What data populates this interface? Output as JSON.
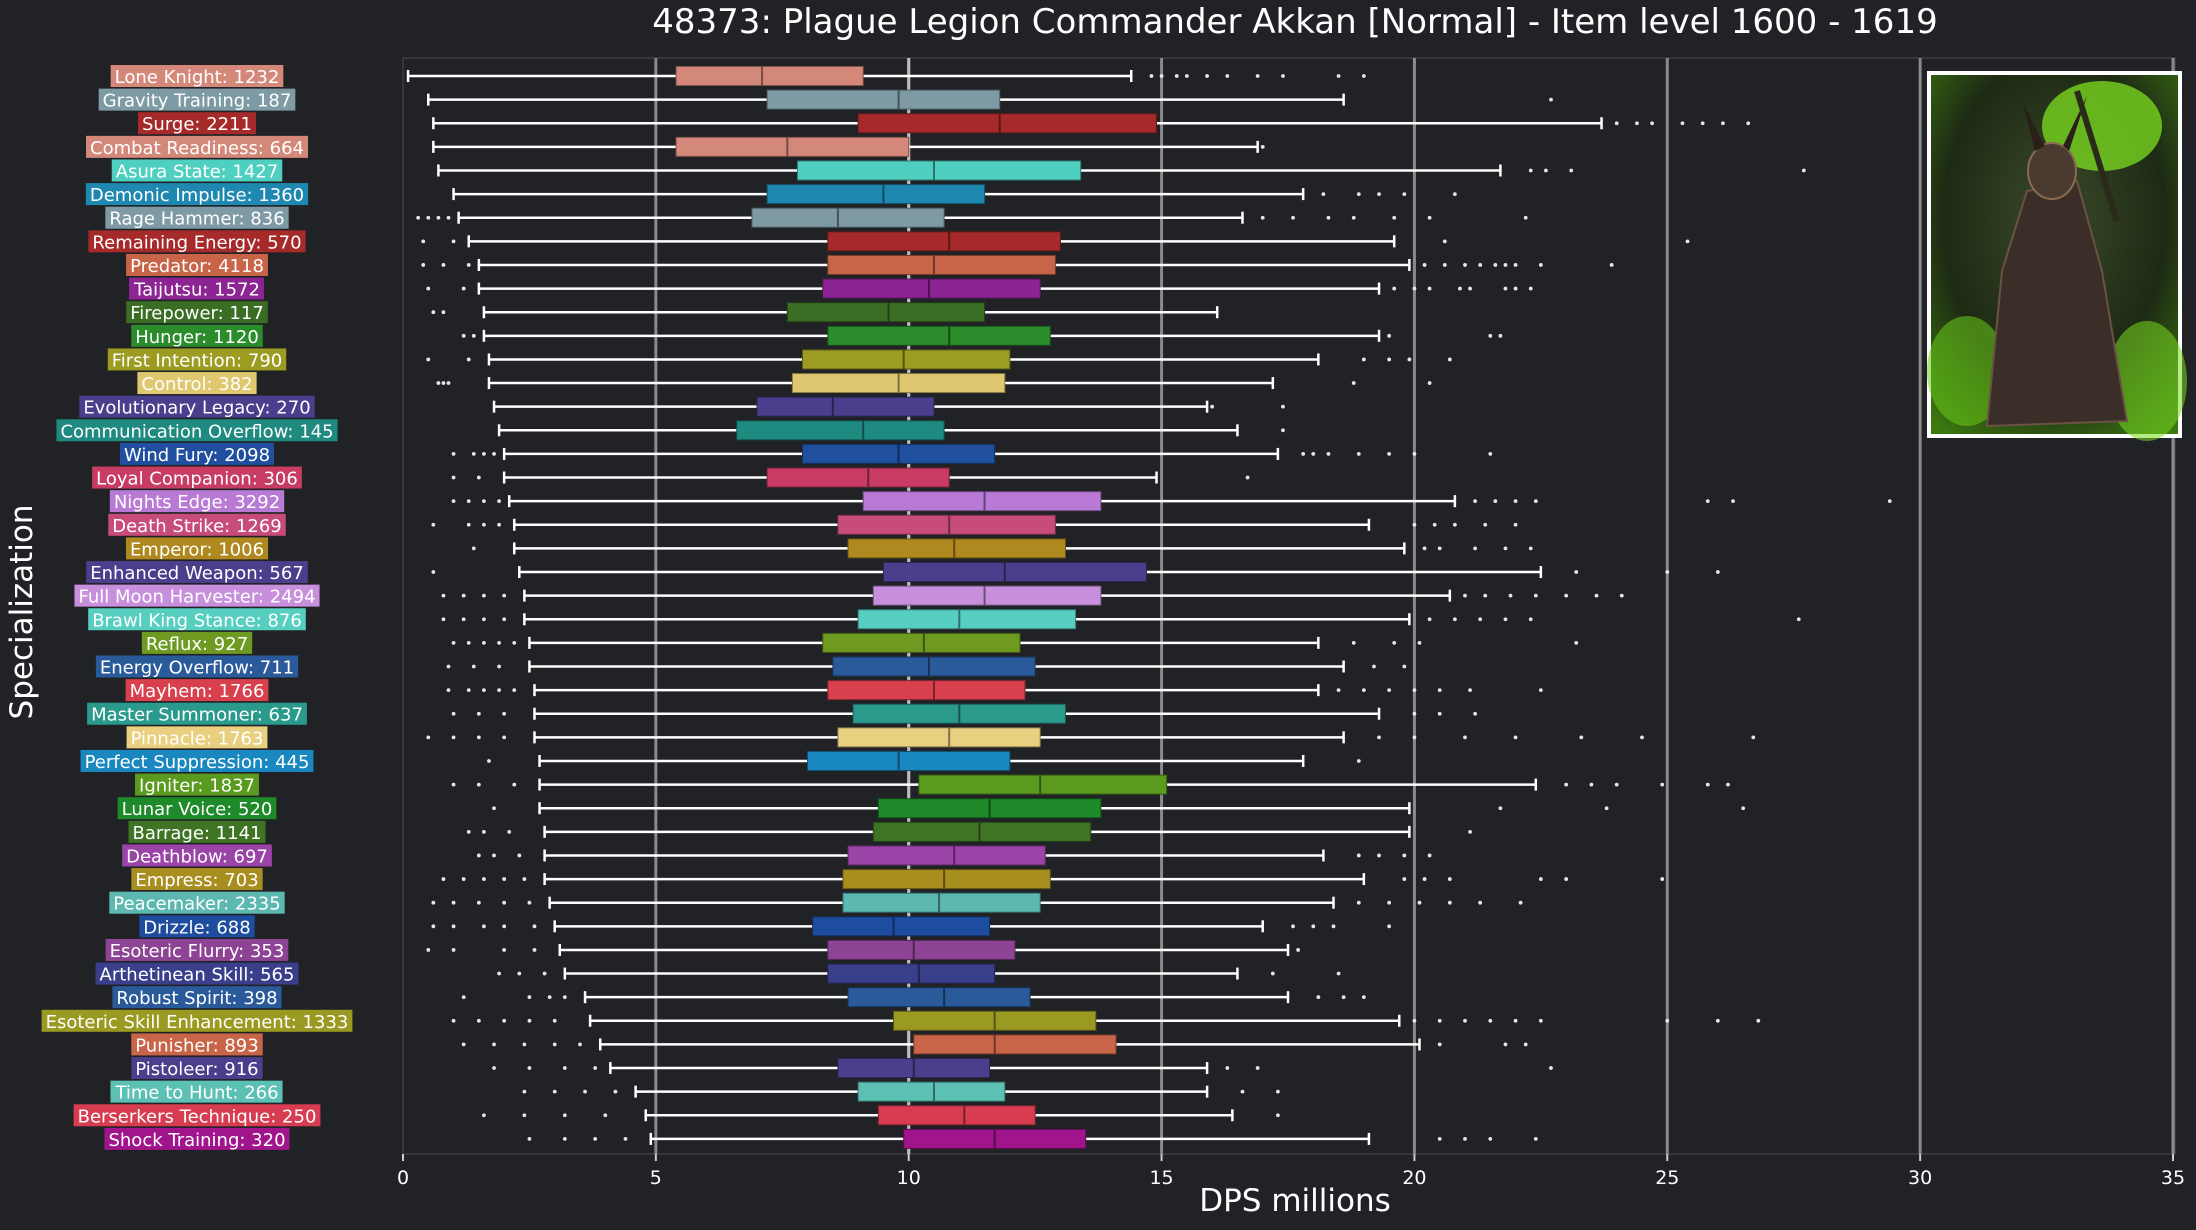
{
  "chart_data": {
    "type": "box",
    "title": "48373: Plague Legion Commander Akkan [Normal] - Item level 1600 - 1619",
    "xlabel": "DPS millions",
    "ylabel": "Specialization",
    "xlim": [
      0,
      35
    ],
    "xticks": [
      0,
      5,
      10,
      15,
      20,
      25,
      30,
      35
    ],
    "grid": "vertical-major",
    "median_reference_line": 10.0,
    "portrait": "boss-portrait (green-lit armored commander)",
    "colors": {
      "background": "#202226",
      "text": "#ffffff",
      "gridline": "#8a8a8a",
      "whisker": "#ffffff"
    },
    "series": [
      {
        "name": "Lone Knight: 1232",
        "color": "#d4887a",
        "whisker_low": 0.1,
        "q1": 5.4,
        "median": 7.1,
        "q3": 9.1,
        "whisker_high": 14.4,
        "outliers": [
          14.8,
          15.0,
          15.3,
          15.5,
          15.9,
          16.3,
          16.9,
          17.4,
          18.5,
          19.0
        ]
      },
      {
        "name": "Gravity Training: 187",
        "color": "#7e9aa4",
        "whisker_low": 0.5,
        "q1": 7.2,
        "median": 9.8,
        "q3": 11.8,
        "whisker_high": 18.6,
        "outliers": [
          22.7
        ]
      },
      {
        "name": "Surge: 2211",
        "color": "#a62a2a",
        "whisker_low": 0.6,
        "q1": 9.0,
        "median": 11.8,
        "q3": 14.9,
        "whisker_high": 23.7,
        "outliers": [
          24.0,
          24.4,
          24.7,
          25.3,
          25.7,
          26.1,
          26.6
        ]
      },
      {
        "name": "Combat Readiness: 664",
        "color": "#d4887a",
        "whisker_low": 0.6,
        "q1": 5.4,
        "median": 7.6,
        "q3": 10.0,
        "whisker_high": 16.9,
        "outliers": [
          17.0
        ]
      },
      {
        "name": "Asura State: 1427",
        "color": "#4fcfbf",
        "whisker_low": 0.7,
        "q1": 7.8,
        "median": 10.5,
        "q3": 13.4,
        "whisker_high": 21.7,
        "outliers": [
          22.3,
          22.6,
          23.1,
          27.7
        ]
      },
      {
        "name": "Demonic Impulse: 1360",
        "color": "#1e88b0",
        "whisker_low": 1.0,
        "q1": 7.2,
        "median": 9.5,
        "q3": 11.5,
        "whisker_high": 17.8,
        "outliers": [
          18.2,
          18.9,
          19.3,
          19.8,
          20.8
        ]
      },
      {
        "name": "Rage Hammer: 836",
        "color": "#7e9aa4",
        "whisker_low": 1.1,
        "q1": 6.9,
        "median": 8.6,
        "q3": 10.7,
        "whisker_high": 16.6,
        "outliers": [
          0.3,
          0.5,
          0.7,
          0.9,
          17.0,
          17.6,
          18.3,
          18.8,
          19.6,
          20.3,
          22.2
        ]
      },
      {
        "name": "Remaining Energy: 570",
        "color": "#a62a2a",
        "whisker_low": 1.3,
        "q1": 8.4,
        "median": 10.8,
        "q3": 13.0,
        "whisker_high": 19.6,
        "outliers": [
          0.4,
          1.0,
          20.6,
          25.4
        ]
      },
      {
        "name": "Predator: 4118",
        "color": "#c86448",
        "whisker_low": 1.5,
        "q1": 8.4,
        "median": 10.5,
        "q3": 12.9,
        "whisker_high": 19.9,
        "outliers": [
          0.4,
          0.8,
          1.3,
          20.2,
          20.6,
          21.0,
          21.3,
          21.6,
          21.8,
          22.0,
          22.5,
          23.9
        ]
      },
      {
        "name": "Taijutsu: 1572",
        "color": "#8c2494",
        "whisker_low": 1.5,
        "q1": 8.3,
        "median": 10.4,
        "q3": 12.6,
        "whisker_high": 19.3,
        "outliers": [
          0.5,
          1.2,
          19.6,
          20.0,
          20.3,
          20.9,
          21.1,
          21.8,
          22.0,
          22.3
        ]
      },
      {
        "name": "Firepower: 117",
        "color": "#3a6e24",
        "whisker_low": 1.6,
        "q1": 7.6,
        "median": 9.6,
        "q3": 11.5,
        "whisker_high": 16.1,
        "outliers": [
          0.6,
          0.8
        ]
      },
      {
        "name": "Hunger: 1120",
        "color": "#2a8c2a",
        "whisker_low": 1.6,
        "q1": 8.4,
        "median": 10.8,
        "q3": 12.8,
        "whisker_high": 19.3,
        "outliers": [
          1.2,
          1.4,
          19.5,
          21.5,
          21.7
        ]
      },
      {
        "name": "First Intention: 790",
        "color": "#9c9c22",
        "whisker_low": 1.7,
        "q1": 7.9,
        "median": 9.9,
        "q3": 12.0,
        "whisker_high": 18.1,
        "outliers": [
          0.5,
          1.3,
          19.0,
          19.5,
          19.9,
          20.7
        ]
      },
      {
        "name": "Control: 382",
        "color": "#e0c870",
        "whisker_low": 1.7,
        "q1": 7.7,
        "median": 9.8,
        "q3": 11.9,
        "whisker_high": 17.2,
        "outliers": [
          0.7,
          0.8,
          0.9,
          18.8,
          20.3
        ]
      },
      {
        "name": "Evolutionary Legacy: 270",
        "color": "#4a3f8c",
        "whisker_low": 1.8,
        "q1": 7.0,
        "median": 8.5,
        "q3": 10.5,
        "whisker_high": 15.9,
        "outliers": [
          16.0,
          17.4
        ]
      },
      {
        "name": "Communication Overflow: 145",
        "color": "#1f8a80",
        "whisker_low": 1.9,
        "q1": 6.6,
        "median": 9.1,
        "q3": 10.7,
        "whisker_high": 16.5,
        "outliers": [
          17.4
        ]
      },
      {
        "name": "Wind Fury: 2098",
        "color": "#1f4f9e",
        "whisker_low": 2.0,
        "q1": 7.9,
        "median": 9.8,
        "q3": 11.7,
        "whisker_high": 17.3,
        "outliers": [
          1.0,
          1.4,
          1.6,
          1.8,
          17.8,
          18.0,
          18.3,
          18.9,
          19.5,
          20.0,
          21.5
        ]
      },
      {
        "name": "Loyal Companion: 306",
        "color": "#c83c64",
        "whisker_low": 2.0,
        "q1": 7.2,
        "median": 9.2,
        "q3": 10.8,
        "whisker_high": 14.9,
        "outliers": [
          1.0,
          1.5,
          16.7
        ]
      },
      {
        "name": "Nights Edge: 3292",
        "color": "#b87ad4",
        "whisker_low": 2.1,
        "q1": 9.1,
        "median": 11.5,
        "q3": 13.8,
        "whisker_high": 20.8,
        "outliers": [
          1.0,
          1.3,
          1.6,
          1.9,
          21.2,
          21.6,
          22.0,
          22.4,
          25.8,
          26.3,
          29.4
        ]
      },
      {
        "name": "Death Strike: 1269",
        "color": "#c84c7a",
        "whisker_low": 2.2,
        "q1": 8.6,
        "median": 10.8,
        "q3": 12.9,
        "whisker_high": 19.1,
        "outliers": [
          0.6,
          1.3,
          1.6,
          1.9,
          20.0,
          20.4,
          20.8,
          21.4,
          22.0
        ]
      },
      {
        "name": "Emperor: 1006",
        "color": "#b08820",
        "whisker_low": 2.2,
        "q1": 8.8,
        "median": 10.9,
        "q3": 13.1,
        "whisker_high": 19.8,
        "outliers": [
          1.4,
          20.2,
          20.5,
          21.2,
          21.8,
          22.3
        ]
      },
      {
        "name": "Enhanced Weapon: 567",
        "color": "#4a3f8c",
        "whisker_low": 2.3,
        "q1": 9.5,
        "median": 11.9,
        "q3": 14.7,
        "whisker_high": 22.5,
        "outliers": [
          0.6,
          23.2,
          25.0,
          26.0
        ]
      },
      {
        "name": "Full Moon Harvester: 2494",
        "color": "#c890dc",
        "whisker_low": 2.4,
        "q1": 9.3,
        "median": 11.5,
        "q3": 13.8,
        "whisker_high": 20.7,
        "outliers": [
          0.8,
          1.2,
          1.6,
          2.0,
          21.0,
          21.4,
          21.9,
          22.4,
          23.0,
          23.6,
          24.1
        ]
      },
      {
        "name": "Brawl King Stance: 876",
        "color": "#56cfc0",
        "whisker_low": 2.4,
        "q1": 9.0,
        "median": 11.0,
        "q3": 13.3,
        "whisker_high": 19.9,
        "outliers": [
          0.8,
          1.2,
          1.6,
          2.0,
          20.3,
          20.8,
          21.3,
          21.8,
          22.3,
          27.6
        ]
      },
      {
        "name": "Reflux: 927",
        "color": "#6e9a22",
        "whisker_low": 2.5,
        "q1": 8.3,
        "median": 10.3,
        "q3": 12.2,
        "whisker_high": 18.1,
        "outliers": [
          1.0,
          1.3,
          1.6,
          1.9,
          2.2,
          18.8,
          19.6,
          20.1,
          23.2
        ]
      },
      {
        "name": "Energy Overflow: 711",
        "color": "#2a5a9a",
        "whisker_low": 2.5,
        "q1": 8.5,
        "median": 10.4,
        "q3": 12.5,
        "whisker_high": 18.6,
        "outliers": [
          0.9,
          1.4,
          1.9,
          19.2,
          19.8
        ]
      },
      {
        "name": "Mayhem: 1766",
        "color": "#d8404e",
        "whisker_low": 2.6,
        "q1": 8.4,
        "median": 10.5,
        "q3": 12.3,
        "whisker_high": 18.1,
        "outliers": [
          0.9,
          1.3,
          1.6,
          1.9,
          2.2,
          18.5,
          19.0,
          19.5,
          20.0,
          20.5,
          21.1,
          22.5
        ]
      },
      {
        "name": "Master Summoner: 637",
        "color": "#2a9a8c",
        "whisker_low": 2.6,
        "q1": 8.9,
        "median": 11.0,
        "q3": 13.1,
        "whisker_high": 19.3,
        "outliers": [
          1.0,
          1.5,
          2.0,
          20.0,
          20.5,
          21.2
        ]
      },
      {
        "name": "Pinnacle: 1763",
        "color": "#e8d080",
        "whisker_low": 2.6,
        "q1": 8.6,
        "median": 10.8,
        "q3": 12.6,
        "whisker_high": 18.6,
        "outliers": [
          0.5,
          1.0,
          1.5,
          2.0,
          19.3,
          20.0,
          21.0,
          22.0,
          23.3,
          24.5,
          26.7
        ]
      },
      {
        "name": "Perfect Suppression: 445",
        "color": "#1a88c0",
        "whisker_low": 2.7,
        "q1": 8.0,
        "median": 9.8,
        "q3": 12.0,
        "whisker_high": 17.8,
        "outliers": [
          1.7,
          18.9
        ]
      },
      {
        "name": "Igniter: 1837",
        "color": "#5a9a1e",
        "whisker_low": 2.7,
        "q1": 10.2,
        "median": 12.6,
        "q3": 15.1,
        "whisker_high": 22.4,
        "outliers": [
          1.0,
          1.5,
          2.2,
          23.0,
          23.5,
          24.0,
          24.9,
          25.8,
          26.2
        ]
      },
      {
        "name": "Lunar Voice: 520",
        "color": "#1e8a2a",
        "whisker_low": 2.7,
        "q1": 9.4,
        "median": 11.6,
        "q3": 13.8,
        "whisker_high": 19.9,
        "outliers": [
          1.8,
          21.7,
          23.8,
          26.5
        ]
      },
      {
        "name": "Barrage: 1141",
        "color": "#3e7424",
        "whisker_low": 2.8,
        "q1": 9.3,
        "median": 11.4,
        "q3": 13.6,
        "whisker_high": 19.9,
        "outliers": [
          1.3,
          1.6,
          2.1,
          21.1
        ]
      },
      {
        "name": "Deathblow: 697",
        "color": "#9a44a8",
        "whisker_low": 2.8,
        "q1": 8.8,
        "median": 10.9,
        "q3": 12.7,
        "whisker_high": 18.2,
        "outliers": [
          1.5,
          1.8,
          2.3,
          18.9,
          19.3,
          19.8,
          20.3
        ]
      },
      {
        "name": "Empress: 703",
        "color": "#a88e1e",
        "whisker_low": 2.8,
        "q1": 8.7,
        "median": 10.7,
        "q3": 12.8,
        "whisker_high": 19.0,
        "outliers": [
          0.8,
          1.2,
          1.6,
          2.0,
          2.4,
          19.8,
          20.2,
          20.7,
          22.5,
          23.0,
          24.9
        ]
      },
      {
        "name": "Peacemaker: 2335",
        "color": "#5cb8b0",
        "whisker_low": 2.9,
        "q1": 8.7,
        "median": 10.6,
        "q3": 12.6,
        "whisker_high": 18.4,
        "outliers": [
          0.6,
          1.0,
          1.5,
          2.0,
          2.5,
          18.9,
          19.5,
          20.1,
          20.7,
          21.3,
          22.1
        ]
      },
      {
        "name": "Drizzle: 688",
        "color": "#1e4c9e",
        "whisker_low": 3.0,
        "q1": 8.1,
        "median": 9.7,
        "q3": 11.6,
        "whisker_high": 17.0,
        "outliers": [
          0.6,
          1.0,
          1.6,
          2.0,
          2.6,
          17.6,
          18.0,
          18.4,
          19.5
        ]
      },
      {
        "name": "Esoteric Flurry: 353",
        "color": "#8e4494",
        "whisker_low": 3.1,
        "q1": 8.4,
        "median": 10.1,
        "q3": 12.1,
        "whisker_high": 17.5,
        "outliers": [
          0.5,
          1.0,
          2.0,
          2.6,
          17.7
        ]
      },
      {
        "name": "Arthetinean Skill: 565",
        "color": "#3a3f8c",
        "whisker_low": 3.2,
        "q1": 8.4,
        "median": 10.2,
        "q3": 11.7,
        "whisker_high": 16.5,
        "outliers": [
          1.9,
          2.3,
          2.8,
          17.2,
          18.5
        ]
      },
      {
        "name": "Robust Spirit: 398",
        "color": "#2a5a9a",
        "whisker_low": 3.6,
        "q1": 8.8,
        "median": 10.7,
        "q3": 12.4,
        "whisker_high": 17.5,
        "outliers": [
          1.2,
          2.5,
          2.9,
          3.2,
          18.1,
          18.6,
          19.0
        ]
      },
      {
        "name": "Esoteric Skill Enhancement: 1333",
        "color": "#9a9a22",
        "whisker_low": 3.7,
        "q1": 9.7,
        "median": 11.7,
        "q3": 13.7,
        "whisker_high": 19.7,
        "outliers": [
          1.0,
          1.5,
          2.0,
          2.5,
          3.0,
          20.0,
          20.5,
          21.0,
          21.5,
          22.0,
          22.5,
          25.0,
          26.0,
          26.8
        ]
      },
      {
        "name": "Punisher: 893",
        "color": "#c86448",
        "whisker_low": 3.9,
        "q1": 10.1,
        "median": 11.7,
        "q3": 14.1,
        "whisker_high": 20.1,
        "outliers": [
          1.2,
          1.8,
          2.4,
          3.0,
          3.5,
          20.5,
          21.8,
          22.2
        ]
      },
      {
        "name": "Pistoleer: 916",
        "color": "#4a3f8c",
        "whisker_low": 4.1,
        "q1": 8.6,
        "median": 10.1,
        "q3": 11.6,
        "whisker_high": 15.9,
        "outliers": [
          1.8,
          2.5,
          3.2,
          3.8,
          16.3,
          16.9,
          22.7
        ]
      },
      {
        "name": "Time to Hunt: 266",
        "color": "#5cc0b4",
        "whisker_low": 4.6,
        "q1": 9.0,
        "median": 10.5,
        "q3": 11.9,
        "whisker_high": 15.9,
        "outliers": [
          2.4,
          3.0,
          3.6,
          4.2,
          16.6,
          17.3
        ]
      },
      {
        "name": "Berserkers Technique: 250",
        "color": "#d83c50",
        "whisker_low": 4.8,
        "q1": 9.4,
        "median": 11.1,
        "q3": 12.5,
        "whisker_high": 16.4,
        "outliers": [
          1.6,
          2.4,
          3.2,
          4.0,
          17.3
        ]
      },
      {
        "name": "Shock Training: 320",
        "color": "#a0148c",
        "whisker_low": 4.9,
        "q1": 9.9,
        "median": 11.7,
        "q3": 13.5,
        "whisker_high": 19.1,
        "outliers": [
          2.5,
          3.2,
          3.8,
          4.4,
          20.5,
          21.0,
          21.5,
          22.4
        ]
      }
    ]
  }
}
